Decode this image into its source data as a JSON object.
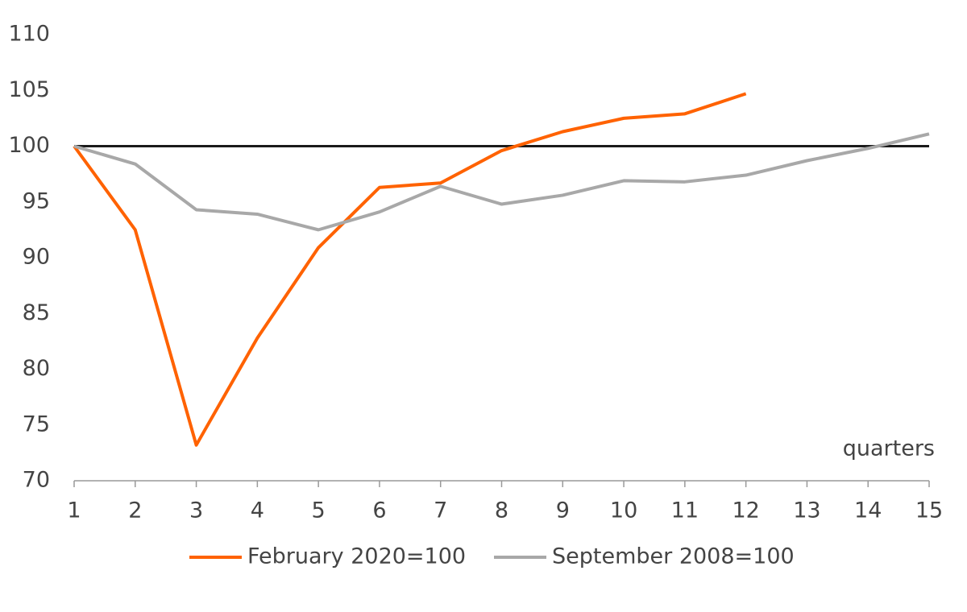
{
  "chart_data": {
    "type": "line",
    "x": [
      1,
      2,
      3,
      4,
      5,
      6,
      7,
      8,
      9,
      10,
      11,
      12,
      13,
      14,
      15
    ],
    "series": [
      {
        "name": "February 2020=100",
        "color": "#ff6200",
        "values": [
          100,
          92.5,
          73.2,
          82.8,
          90.9,
          96.3,
          96.7,
          99.6,
          101.3,
          102.5,
          102.9,
          104.7,
          null,
          null,
          null
        ]
      },
      {
        "name": "September 2008=100",
        "color": "#a8a8a8",
        "values": [
          100,
          98.4,
          94.3,
          93.9,
          92.5,
          94.1,
          96.4,
          94.8,
          95.6,
          96.9,
          96.8,
          97.4,
          98.7,
          99.8,
          101.1
        ]
      }
    ],
    "xlim": [
      1,
      15
    ],
    "xticks": [
      1,
      2,
      3,
      4,
      5,
      6,
      7,
      8,
      9,
      10,
      11,
      12,
      13,
      14,
      15
    ],
    "ylim": [
      70,
      110
    ],
    "yticks": [
      70,
      75,
      80,
      85,
      90,
      95,
      100,
      105,
      110
    ],
    "reference_line": 100,
    "reference_color": "#1a1a1a",
    "annotation": "quarters",
    "legend": "bottom",
    "grid": false
  }
}
